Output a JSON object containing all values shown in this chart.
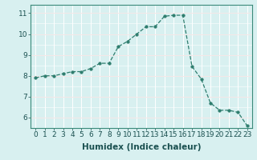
{
  "x": [
    0,
    1,
    2,
    3,
    4,
    5,
    6,
    7,
    8,
    9,
    10,
    11,
    12,
    13,
    14,
    15,
    16,
    17,
    18,
    19,
    20,
    21,
    22,
    23
  ],
  "y": [
    7.9,
    8.0,
    8.0,
    8.1,
    8.2,
    8.2,
    8.35,
    8.6,
    8.6,
    9.4,
    9.65,
    10.0,
    10.35,
    10.35,
    10.85,
    10.9,
    10.9,
    8.45,
    7.85,
    6.7,
    6.35,
    6.35,
    6.25,
    5.6
  ],
  "line_color": "#2e7d6e",
  "marker": "o",
  "marker_size": 2.5,
  "bg_color": "#d8f0f0",
  "grid_color_white": "#ffffff",
  "grid_color_pink": "#e8c8c8",
  "xlabel": "Humidex (Indice chaleur)",
  "xlim": [
    -0.5,
    23.5
  ],
  "ylim": [
    5.5,
    11.4
  ],
  "yticks": [
    6,
    7,
    8,
    9,
    10,
    11
  ],
  "xticks": [
    0,
    1,
    2,
    3,
    4,
    5,
    6,
    7,
    8,
    9,
    10,
    11,
    12,
    13,
    14,
    15,
    16,
    17,
    18,
    19,
    20,
    21,
    22,
    23
  ],
  "xtick_labels": [
    "0",
    "1",
    "2",
    "3",
    "4",
    "5",
    "6",
    "7",
    "8",
    "9",
    "10",
    "11",
    "12",
    "13",
    "14",
    "15",
    "16",
    "17",
    "18",
    "19",
    "20",
    "21",
    "22",
    "23"
  ],
  "label_fontsize": 7.5,
  "tick_fontsize": 6.5
}
